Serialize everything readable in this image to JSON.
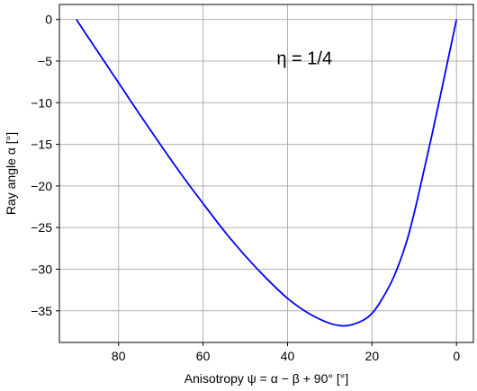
{
  "chart_data": {
    "type": "line",
    "title": "",
    "annotation": "η = 1/4",
    "xlabel": "Anisotropy   ψ = α − β + 90°   [°]",
    "ylabel": "Ray angle  α   [°]",
    "xlim": [
      94,
      -4
    ],
    "ylim": [
      -38.8,
      1.8
    ],
    "x_reversed": true,
    "grid": true,
    "xticks": [
      80,
      60,
      40,
      20,
      0
    ],
    "yticks": [
      0,
      -5,
      -10,
      -15,
      -20,
      -25,
      -30,
      -35
    ],
    "xtick_labels": [
      "80",
      "60",
      "40",
      "20",
      "0"
    ],
    "ytick_labels": [
      "0",
      "−5",
      "−10",
      "−15",
      "−20",
      "−25",
      "−30",
      "−35"
    ],
    "series": [
      {
        "color": "#0000ff",
        "x": [
          90,
          85,
          80,
          75,
          70,
          65,
          60,
          55,
          50,
          45,
          40,
          35,
          30,
          27,
          25,
          22,
          20,
          18,
          15,
          12,
          10,
          8,
          6,
          4,
          2,
          0
        ],
        "y": [
          0,
          -3.8,
          -7.6,
          -11.4,
          -15.1,
          -18.7,
          -22.1,
          -25.4,
          -28.4,
          -31.1,
          -33.5,
          -35.3,
          -36.5,
          -36.8,
          -36.7,
          -36.1,
          -35.3,
          -33.9,
          -31.1,
          -27.0,
          -23.2,
          -18.8,
          -14.3,
          -9.6,
          -4.8,
          0
        ]
      }
    ]
  }
}
